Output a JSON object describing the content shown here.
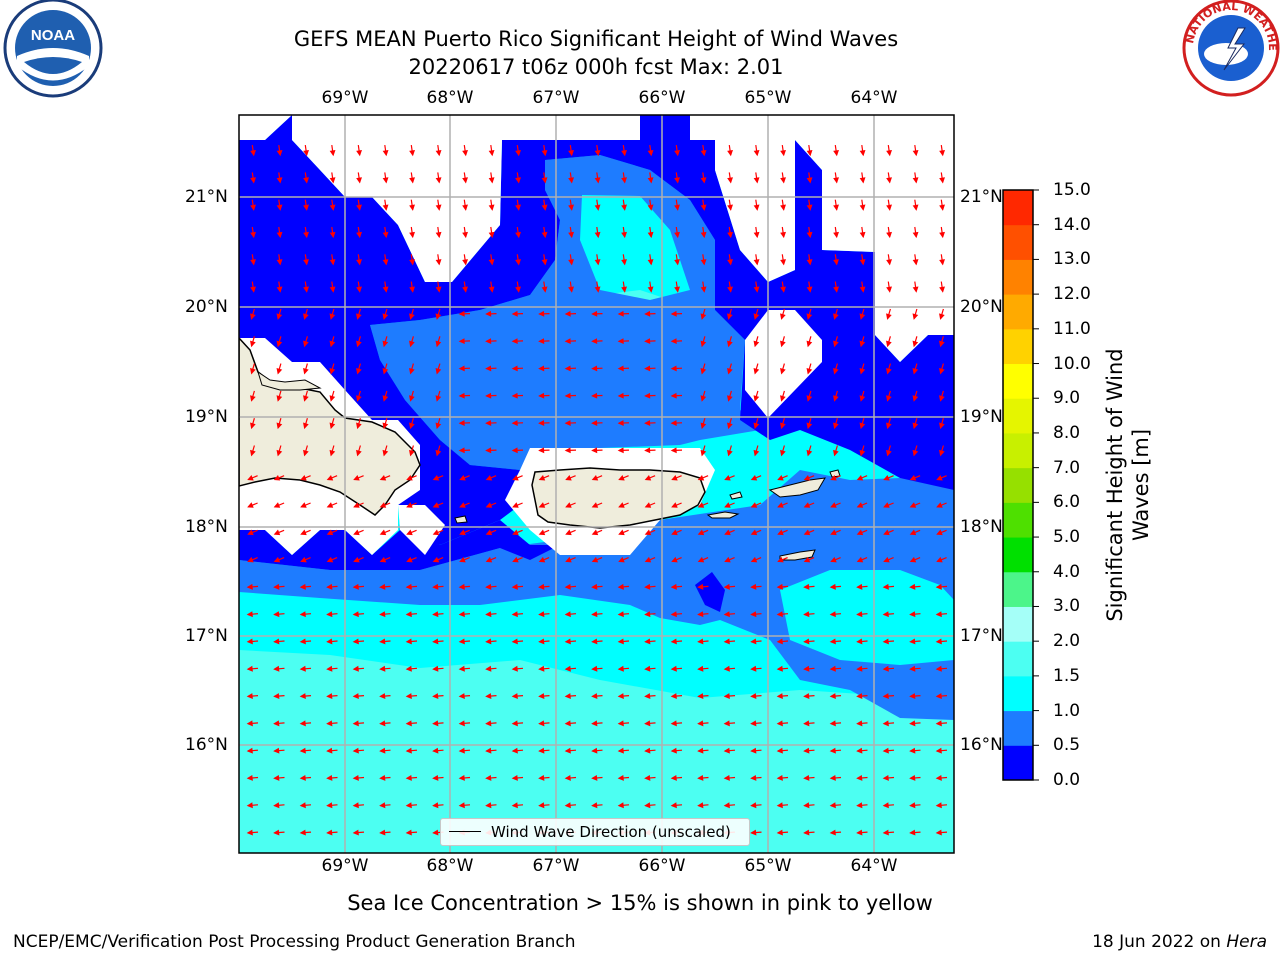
{
  "title_line1": "GEFS MEAN Puerto Rico Significant Height of Wind Waves",
  "title_line2": "20220617 t06z 000h fcst   Max: 2.01",
  "longitude_labels": [
    "69°W",
    "68°W",
    "67°W",
    "66°W",
    "65°W",
    "64°W"
  ],
  "latitude_labels": [
    "21°N",
    "20°N",
    "19°N",
    "18°N",
    "17°N",
    "16°N"
  ],
  "legend_label": "Wind Wave Direction (unscaled)",
  "colorbar": {
    "title_line1": "Significant Height of Wind",
    "title_line2": "Waves [m]",
    "ticks": [
      "0.0",
      "0.5",
      "1.0",
      "1.5",
      "2.0",
      "3.0",
      "4.0",
      "5.0",
      "6.0",
      "7.0",
      "8.0",
      "9.0",
      "10.0",
      "11.0",
      "12.0",
      "13.0",
      "14.0",
      "15.0"
    ],
    "colors": [
      "#0000ff",
      "#1e7cff",
      "#00ffff",
      "#4cfff2",
      "#a5fff8",
      "#4cf58a",
      "#00e000",
      "#4ee000",
      "#96e000",
      "#c8f000",
      "#e5f500",
      "#ffff00",
      "#ffd200",
      "#ffaa00",
      "#ff8200",
      "#ff5000",
      "#ff2800",
      "#ff0000"
    ]
  },
  "footer_note": "Sea Ice Concentration > 15% is shown in pink to yellow",
  "footer_credit": "NCEP/EMC/Verification Post Processing Product Generation Branch",
  "footer_date": "18 Jun 2022 on",
  "footer_host": "Hera",
  "map_colors": {
    "wave_0_05": "#0000ff",
    "wave_05_10": "#1e7cff",
    "wave_10_15": "#00ffff",
    "wave_15_20": "#4cfff2",
    "land": "#efeddc",
    "arrow": "#ff0000"
  },
  "logos": {
    "noaa_text": "NOAA",
    "nws_text": "NATIONAL WEATHER SERVICE"
  }
}
